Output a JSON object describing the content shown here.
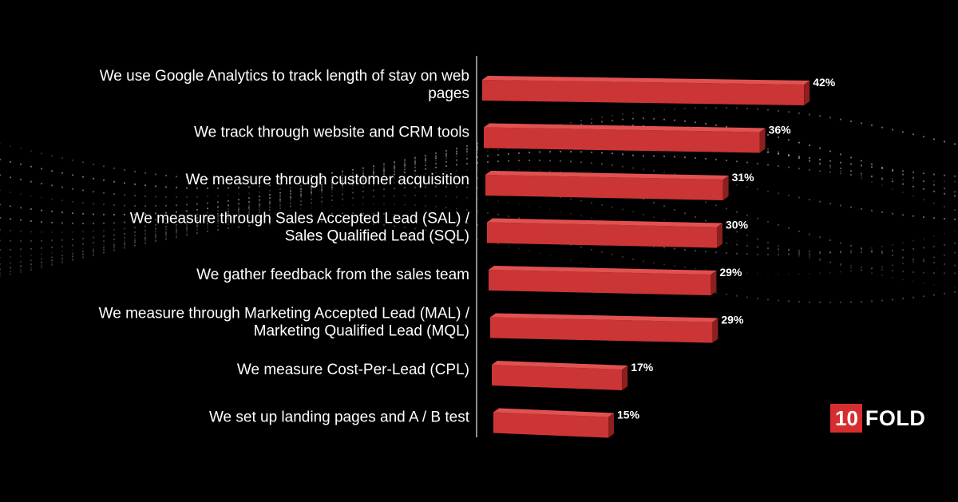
{
  "chart_data": {
    "type": "bar",
    "orientation": "horizontal",
    "categories": [
      [
        "We use Google Analytics to track length of stay on web",
        "pages"
      ],
      [
        "We track through website and CRM tools"
      ],
      [
        "We measure through customer acquisition"
      ],
      [
        "We measure through Sales Accepted Lead (SAL) /",
        "Sales Qualified Lead (SQL)"
      ],
      [
        "We gather feedback from the sales team"
      ],
      [
        "We measure through Marketing Accepted Lead (MAL) /",
        "Marketing Qualified Lead (MQL)"
      ],
      [
        "We measure Cost-Per-Lead (CPL)"
      ],
      [
        "We set up landing pages and A / B test"
      ]
    ],
    "values": [
      42,
      36,
      31,
      30,
      29,
      29,
      17,
      15
    ],
    "value_labels": [
      "42%",
      "36%",
      "31%",
      "30%",
      "29%",
      "29%",
      "17%",
      "15%"
    ],
    "unit": "%",
    "xlim": [
      0,
      42
    ],
    "grid": false,
    "colors": {
      "bar_front": "#cc3535",
      "bar_top": "#e25151",
      "bar_side": "#8c1f1f",
      "axis": "#bbbbbb"
    }
  },
  "brand": {
    "logo_number": "10",
    "logo_word": "FOLD",
    "accent": "#d62e2e"
  }
}
